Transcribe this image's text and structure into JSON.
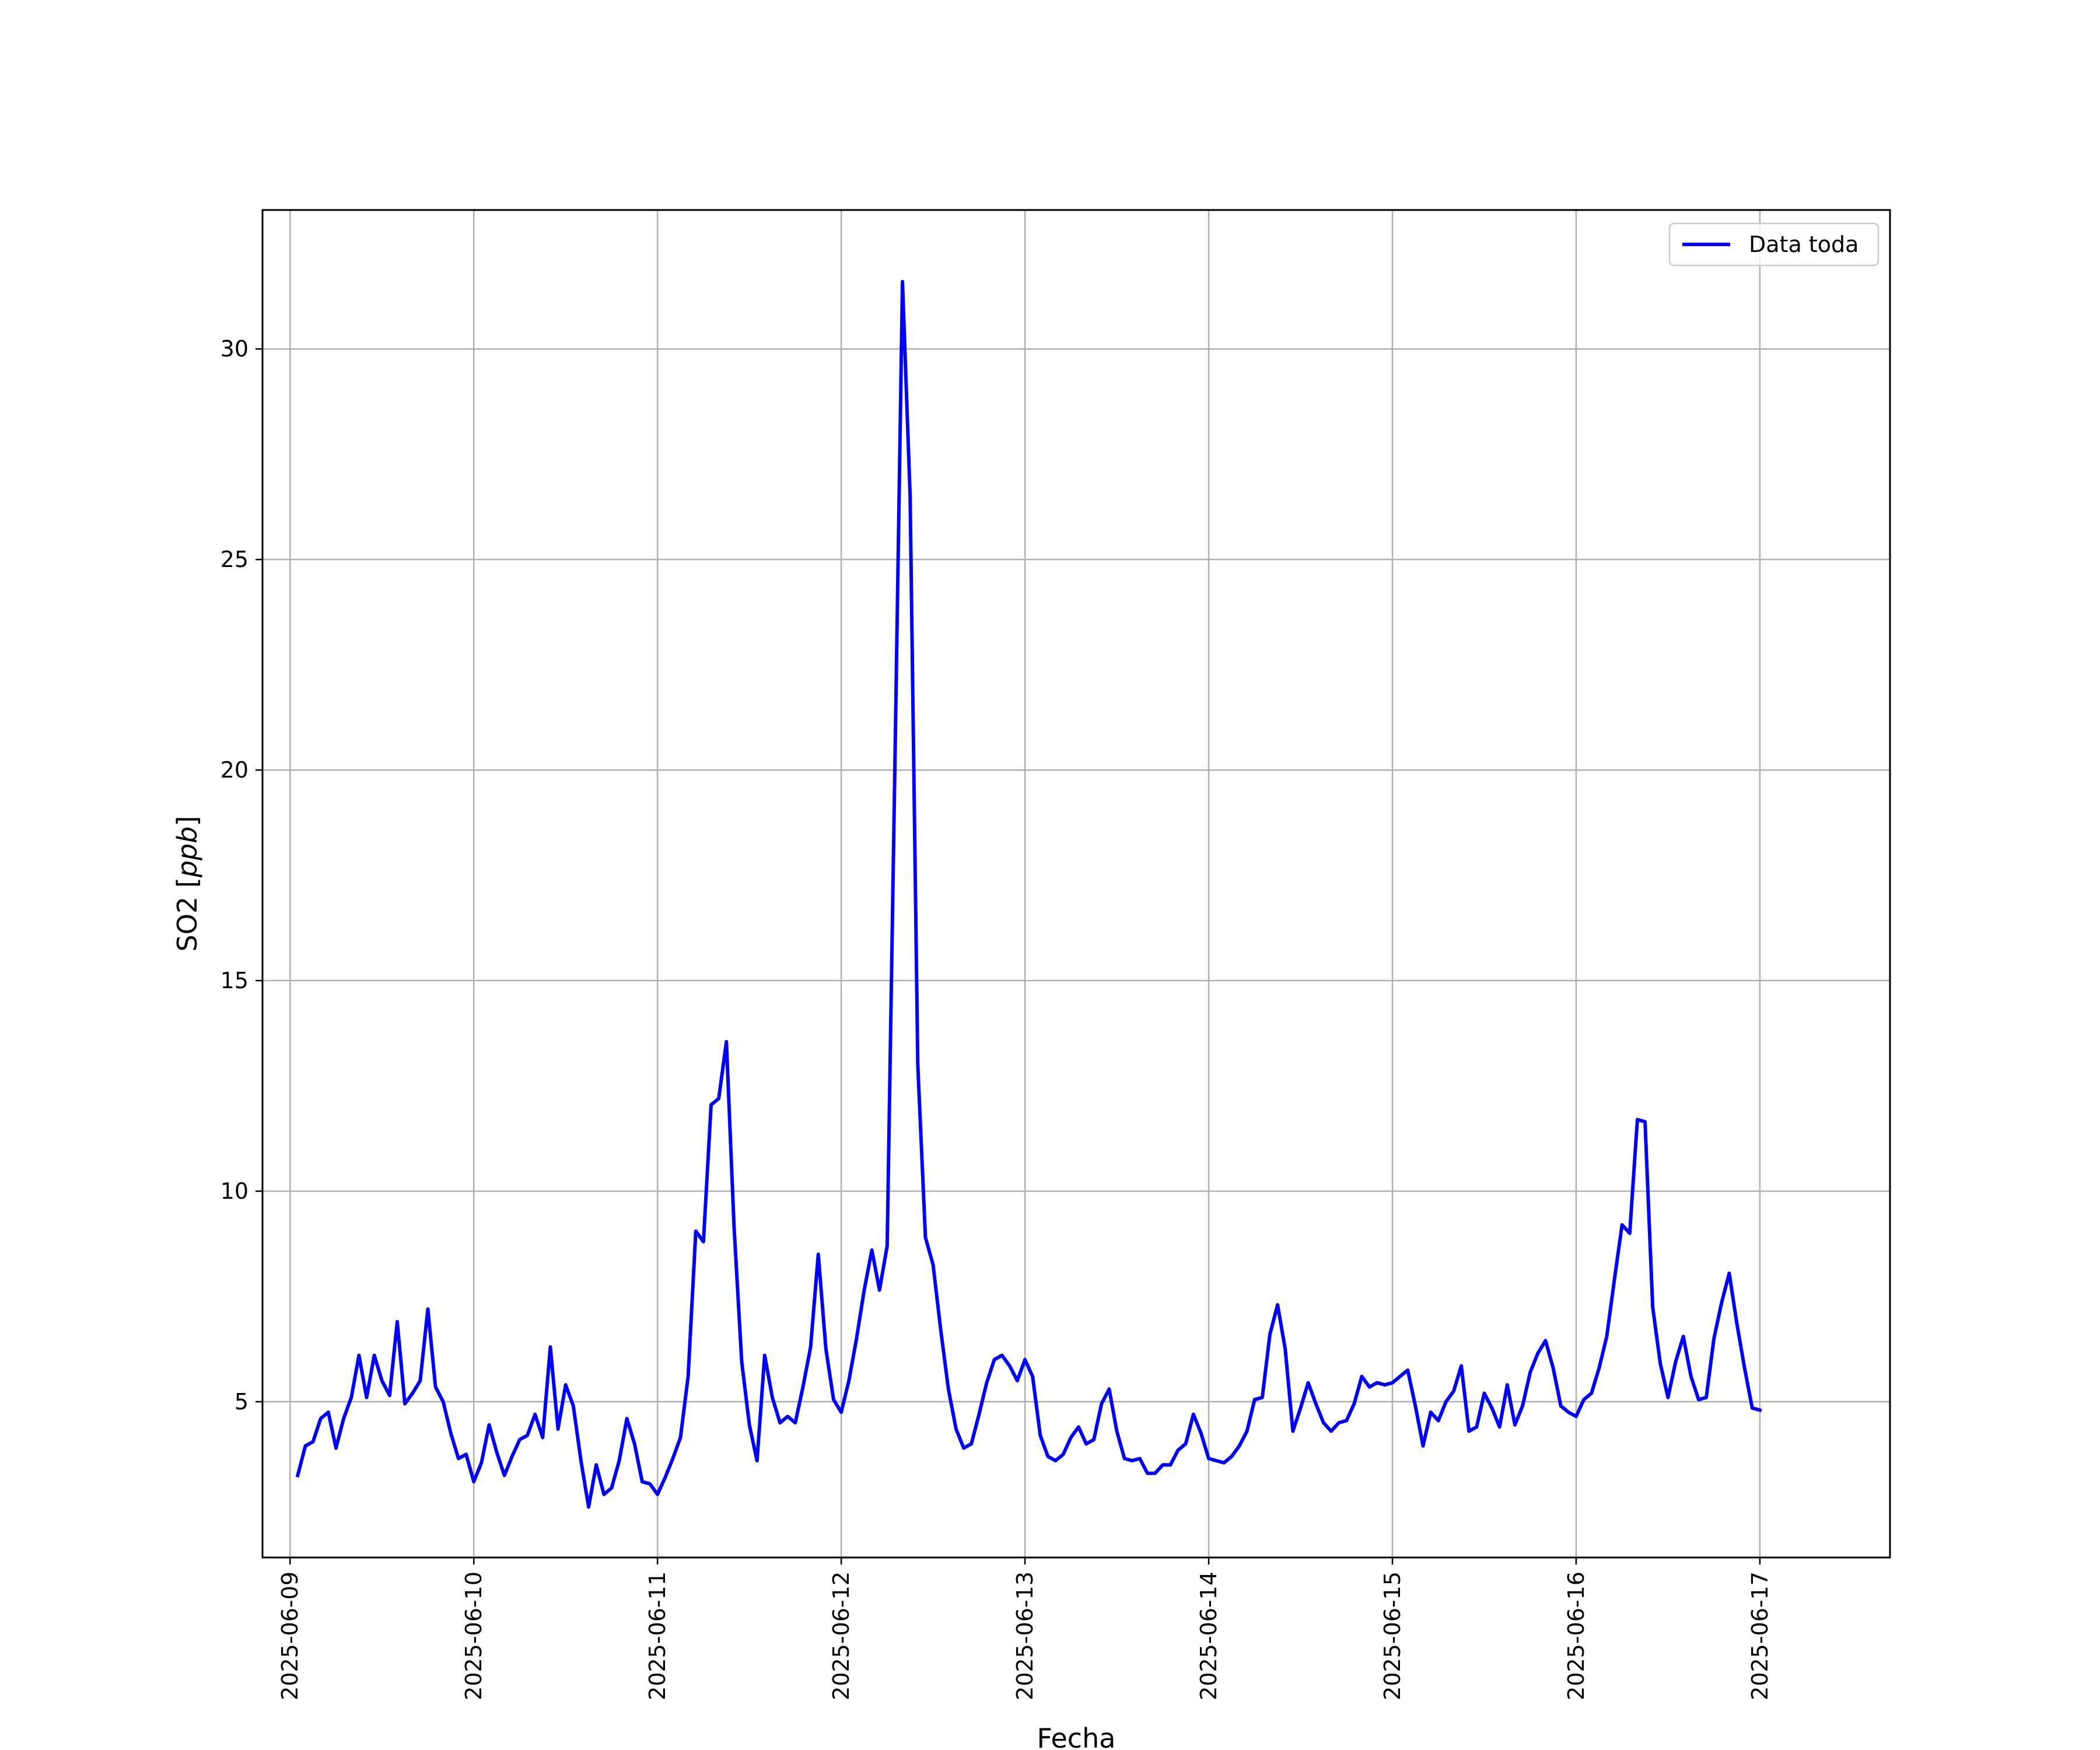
{
  "chart_data": {
    "type": "line",
    "title": "",
    "xlabel": "Fecha",
    "ylabel_text": "SO2 [",
    "ylabel_unit": "ppb",
    "ylabel_close": "]",
    "xlim": [
      "2025-06-08 20:24",
      "2025-06-17 17:00"
    ],
    "ylim": [
      1.3,
      33.3
    ],
    "x_ticks": [
      "2025-06-09",
      "2025-06-10",
      "2025-06-11",
      "2025-06-12",
      "2025-06-13",
      "2025-06-14",
      "2025-06-15",
      "2025-06-16",
      "2025-06-17"
    ],
    "y_ticks": [
      5,
      10,
      15,
      20,
      25,
      30
    ],
    "y_tick_labels": [
      "5",
      "10",
      "15",
      "20",
      "25",
      "30"
    ],
    "grid": true,
    "legend_position": "top-right",
    "series": [
      {
        "name": "Data toda",
        "color": "#0000ff",
        "x_start": "2025-06-09 01:00",
        "x_step": "1 hour",
        "values": [
          3.25,
          3.95,
          4.05,
          4.6,
          4.75,
          3.9,
          4.6,
          5.1,
          6.1,
          5.1,
          6.1,
          5.5,
          5.15,
          6.9,
          4.95,
          5.2,
          5.5,
          7.2,
          5.35,
          5.0,
          4.25,
          3.65,
          3.75,
          3.1,
          3.55,
          4.45,
          3.8,
          3.25,
          3.7,
          4.1,
          4.2,
          4.7,
          4.15,
          6.3,
          4.35,
          5.4,
          4.9,
          3.6,
          2.5,
          3.5,
          2.8,
          2.95,
          3.6,
          4.6,
          4.0,
          3.1,
          3.05,
          2.8,
          3.2,
          3.65,
          4.15,
          5.6,
          9.05,
          8.8,
          12.05,
          12.2,
          13.55,
          9.15,
          5.95,
          4.45,
          3.6,
          6.1,
          5.1,
          4.5,
          4.65,
          4.5,
          5.35,
          6.3,
          8.5,
          6.25,
          5.05,
          4.75,
          5.5,
          6.5,
          7.65,
          8.6,
          7.65,
          8.7,
          20.0,
          31.6,
          26.5,
          13.0,
          8.9,
          8.25,
          6.7,
          5.3,
          4.35,
          3.9,
          4.0,
          4.7,
          5.45,
          6.0,
          6.1,
          5.85,
          5.5,
          6.0,
          5.6,
          4.2,
          3.7,
          3.6,
          3.75,
          4.15,
          4.4,
          4.0,
          4.1,
          4.95,
          5.3,
          4.3,
          3.65,
          3.6,
          3.65,
          3.3,
          3.3,
          3.5,
          3.5,
          3.85,
          4.0,
          4.7,
          4.25,
          3.65,
          3.6,
          3.55,
          3.7,
          3.95,
          4.3,
          5.05,
          5.1,
          6.6,
          7.3,
          6.25,
          4.3,
          4.85,
          5.45,
          4.95,
          4.5,
          4.3,
          4.5,
          4.55,
          4.95,
          5.6,
          5.35,
          5.45,
          5.4,
          5.45,
          5.6,
          5.75,
          4.9,
          3.95,
          4.75,
          4.55,
          5.0,
          5.25,
          5.85,
          4.3,
          4.4,
          5.2,
          4.85,
          4.4,
          5.4,
          4.45,
          4.9,
          5.7,
          6.15,
          6.45,
          5.8,
          4.9,
          4.75,
          4.65,
          5.05,
          5.2,
          5.8,
          6.55,
          7.9,
          9.2,
          9.0,
          11.7,
          11.65,
          7.25,
          5.9,
          5.1,
          5.95,
          6.55,
          5.6,
          5.05,
          5.1,
          6.5,
          7.35,
          8.05,
          6.85,
          5.8,
          4.85,
          4.8
        ]
      }
    ]
  }
}
